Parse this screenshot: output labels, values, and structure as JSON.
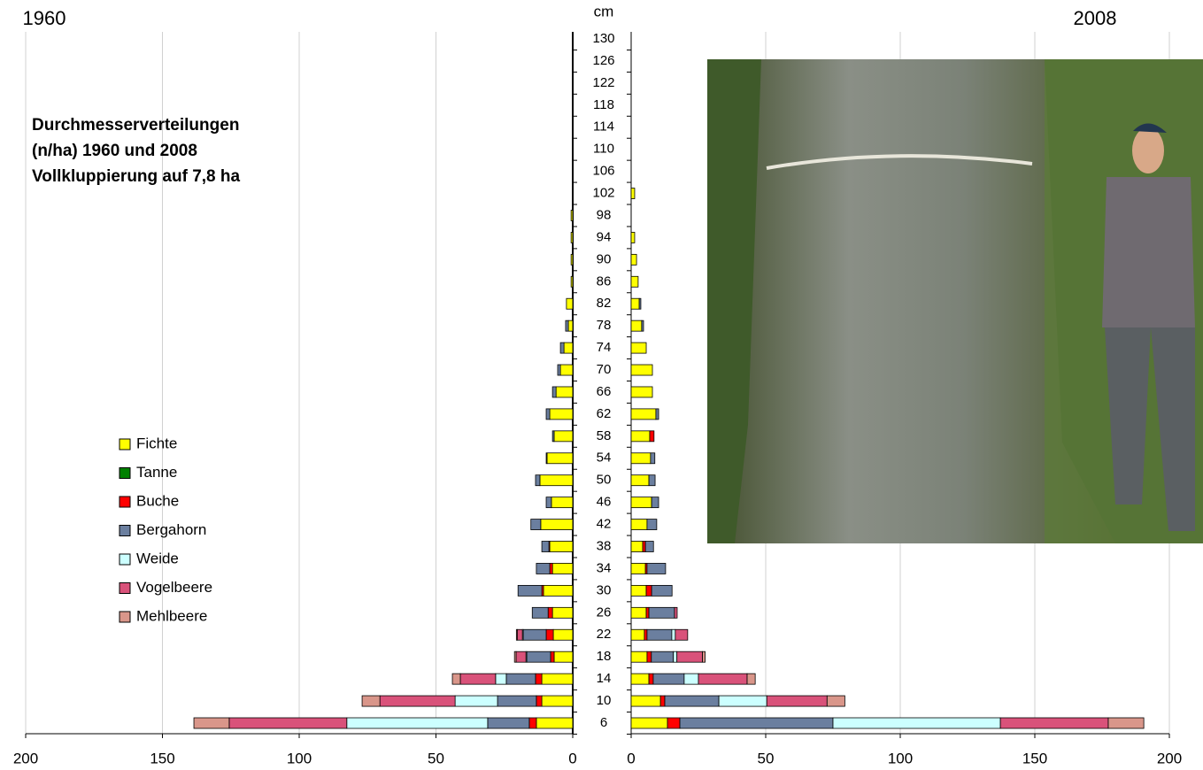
{
  "chart_data": [
    {
      "type": "hbar-stacked",
      "title": "1960",
      "reversed": true,
      "annotation": [
        "Durchmesserverteilungen",
        "(n/ha) 1960 und 2008",
        "Vollkluppierung auf 7,8 ha"
      ],
      "category_label": "cm",
      "categories": [
        "6",
        "10",
        "14",
        "18",
        "22",
        "26",
        "30",
        "34",
        "38",
        "42",
        "46",
        "50",
        "54",
        "58",
        "62",
        "66",
        "70",
        "74",
        "78",
        "82",
        "86",
        "90",
        "94",
        "98",
        "102",
        "106",
        "110",
        "114",
        "118",
        "122",
        "126",
        "130"
      ],
      "xlim": [
        0,
        200
      ],
      "xticks": [
        0,
        50,
        100,
        150,
        200
      ],
      "series": [
        {
          "name": "Fichte",
          "color": "#ffff00",
          "values": [
            13.3,
            11.3,
            11.3,
            6.8,
            7.1,
            7.4,
            10.7,
            7.4,
            8.4,
            11.7,
            7.8,
            12,
            9.4,
            6.8,
            8.4,
            6.1,
            4.5,
            3.2,
            1.6,
            2.3,
            0.6,
            0.6,
            0.6,
            0.6,
            0,
            0,
            0,
            0,
            0,
            0,
            0,
            0
          ]
        },
        {
          "name": "Tanne",
          "color": "#008000",
          "values": [
            0,
            0,
            0,
            0,
            0,
            0,
            0,
            0,
            0,
            0,
            0,
            0,
            0,
            0,
            0,
            0,
            0,
            0,
            0,
            0,
            0,
            0,
            0,
            0,
            0,
            0,
            0,
            0,
            0,
            0,
            0,
            0
          ]
        },
        {
          "name": "Buche",
          "color": "#ff0000",
          "values": [
            2.6,
            2,
            2.3,
            1.3,
            2.6,
            1.6,
            0.6,
            1,
            0.3,
            0,
            0,
            0,
            0,
            0,
            0,
            0,
            0,
            0,
            0,
            0,
            0,
            0,
            0,
            0,
            0,
            0,
            0,
            0,
            0,
            0,
            0,
            0
          ]
        },
        {
          "name": "Bergahorn",
          "color": "#6b7f9f",
          "values": [
            15.2,
            14.2,
            10.7,
            8.7,
            8.4,
            5.8,
            8.7,
            4.9,
            2.6,
            3.6,
            1.9,
            1.6,
            0.3,
            0.6,
            1.3,
            1.3,
            1,
            1.3,
            1,
            0,
            0,
            0,
            0,
            0,
            0,
            0,
            0,
            0,
            0,
            0,
            0,
            0
          ]
        },
        {
          "name": "Weide",
          "color": "#ccffff",
          "values": [
            51.5,
            15.5,
            3.9,
            0.3,
            0.3,
            0,
            0,
            0,
            0,
            0,
            0,
            0,
            0,
            0,
            0,
            0,
            0,
            0,
            0,
            0,
            0,
            0,
            0,
            0,
            0,
            0,
            0,
            0,
            0,
            0,
            0,
            0
          ]
        },
        {
          "name": "Vogelbeere",
          "color": "#d9527a",
          "values": [
            43,
            27.5,
            12.9,
            3.6,
            1.9,
            0,
            0,
            0,
            0,
            0,
            0,
            0,
            0,
            0,
            0,
            0,
            0,
            0,
            0,
            0,
            0,
            0,
            0,
            0,
            0,
            0,
            0,
            0,
            0,
            0,
            0,
            0
          ]
        },
        {
          "name": "Mehlbeere",
          "color": "#d9968a",
          "values": [
            12.9,
            6.5,
            2.9,
            0.6,
            0.3,
            0,
            0,
            0,
            0,
            0,
            0,
            0,
            0,
            0,
            0,
            0,
            0,
            0,
            0,
            0,
            0,
            0,
            0,
            0,
            0,
            0,
            0,
            0,
            0,
            0,
            0,
            0
          ]
        }
      ]
    },
    {
      "type": "hbar-stacked",
      "title": "2008",
      "reversed": false,
      "xlim": [
        0,
        200
      ],
      "xticks": [
        0,
        50,
        100,
        150,
        200
      ],
      "series": [
        {
          "color": "#ffff00",
          "values": [
            13.5,
            10.9,
            6.6,
            5.9,
            4.9,
            5.6,
            5.6,
            5.3,
            4.3,
            5.9,
            7.6,
            6.6,
            7.2,
            6.9,
            9.2,
            7.9,
            7.9,
            5.6,
            3.9,
            3,
            2.6,
            2,
            1.3,
            0,
            1.3,
            0,
            0,
            0,
            0,
            0,
            0,
            0
          ]
        },
        {
          "color": "#008000",
          "values": [
            0,
            0,
            0,
            0,
            0,
            0,
            0,
            0,
            0,
            0,
            0,
            0,
            0,
            0,
            0,
            0,
            0,
            0,
            0,
            0,
            0,
            0,
            0,
            0,
            0,
            0,
            0,
            0,
            0,
            0,
            0,
            0
          ]
        },
        {
          "color": "#ff0000",
          "values": [
            4.6,
            1.6,
            1.6,
            1.6,
            1,
            1,
            2,
            0.6,
            1,
            0,
            0,
            0,
            0,
            1.6,
            0,
            0,
            0,
            0,
            0,
            0,
            0,
            0,
            0,
            0,
            0,
            0,
            0,
            0,
            0,
            0,
            0,
            0
          ]
        },
        {
          "color": "#6b7f9f",
          "values": [
            56.9,
            20.1,
            11.5,
            8.2,
            9.2,
            9.5,
            7.6,
            6.9,
            3,
            3.6,
            2.6,
            2.3,
            1.6,
            0,
            1,
            0,
            0,
            0,
            0.7,
            0.6,
            0,
            0,
            0,
            0,
            0,
            0,
            0,
            0,
            0,
            0,
            0,
            0
          ]
        },
        {
          "color": "#ccffff",
          "values": [
            62.2,
            17.8,
            5.3,
            1.3,
            1.3,
            0,
            0,
            0,
            0,
            0,
            0,
            0,
            0,
            0,
            0,
            0,
            0,
            0,
            0,
            0,
            0,
            0,
            0,
            0,
            0,
            0,
            0,
            0,
            0,
            0,
            0,
            0
          ]
        },
        {
          "color": "#d9527a",
          "values": [
            40.1,
            22.4,
            18.1,
            9.5,
            4.6,
            1,
            0,
            0,
            0,
            0,
            0,
            0,
            0,
            0,
            0,
            0,
            0,
            0,
            0,
            0,
            0,
            0,
            0,
            0,
            0,
            0,
            0,
            0,
            0,
            0,
            0,
            0
          ]
        },
        {
          "color": "#d9968a",
          "values": [
            13.2,
            6.6,
            3,
            1,
            0,
            0,
            0,
            0,
            0,
            0,
            0,
            0,
            0,
            0,
            0,
            0,
            0,
            0,
            0,
            0,
            0,
            0,
            0,
            0,
            0,
            0,
            0,
            0,
            0,
            0,
            0,
            0
          ]
        }
      ]
    }
  ]
}
